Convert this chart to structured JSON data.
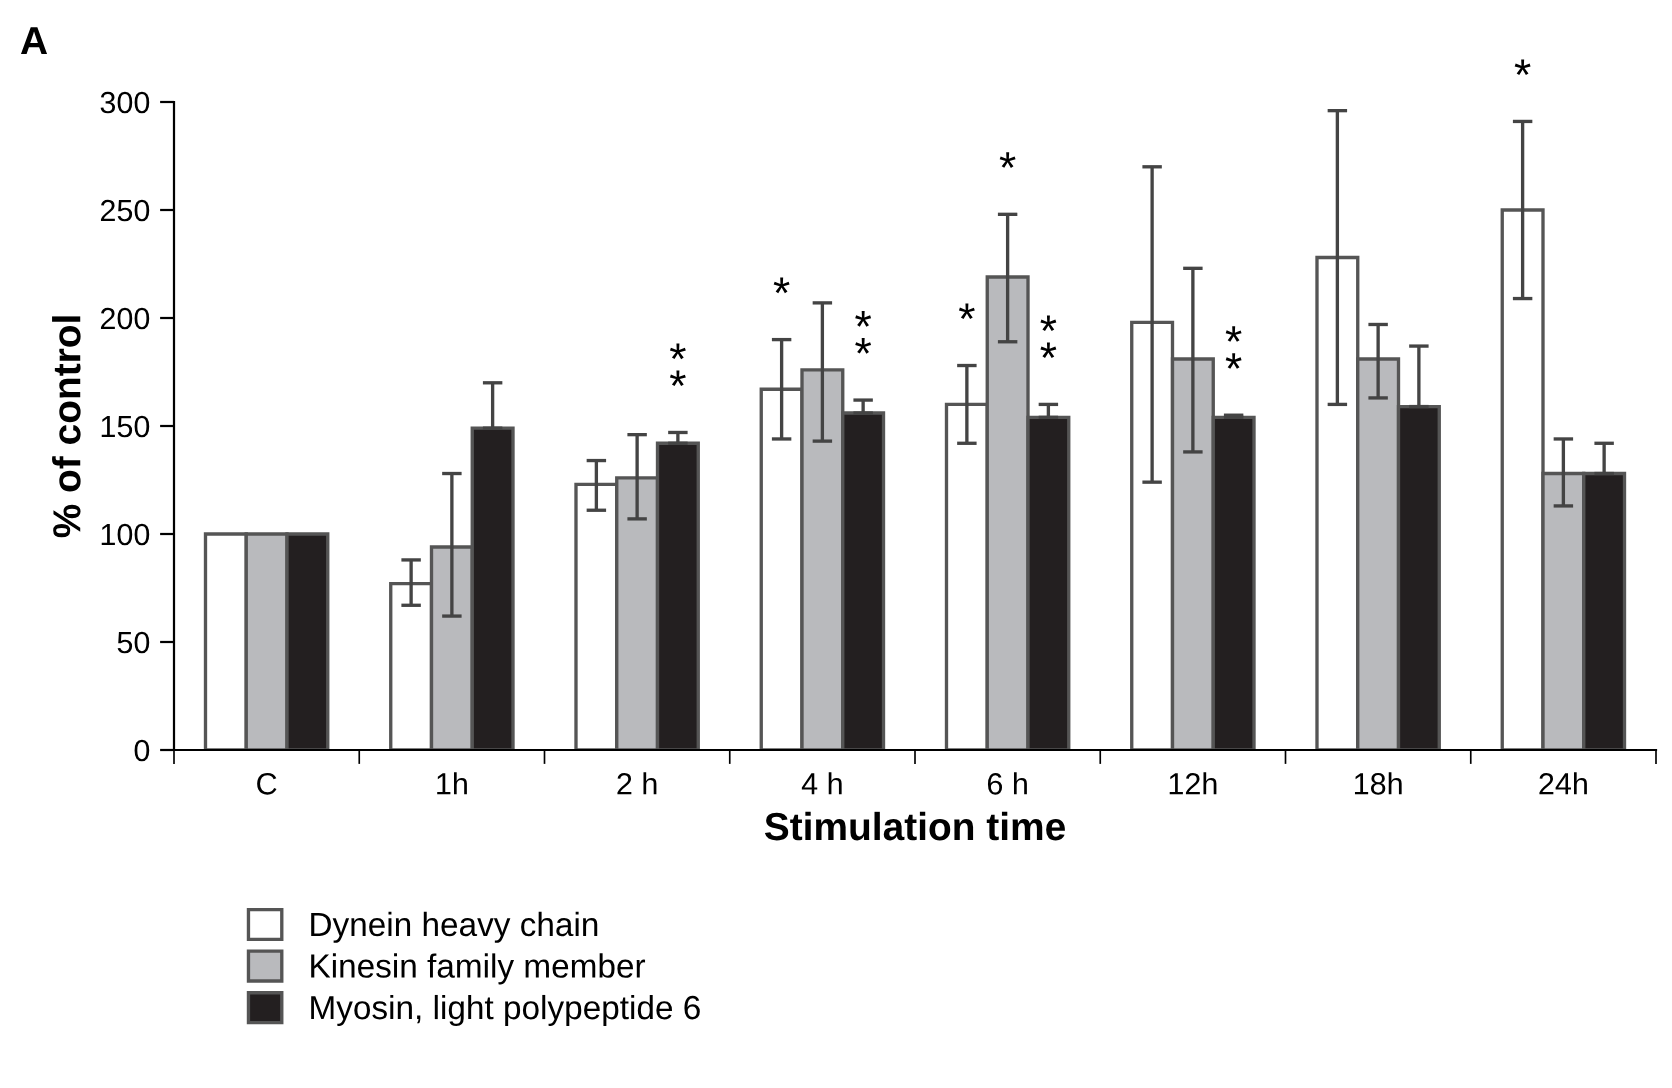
{
  "chart_data": {
    "type": "bar",
    "xlabel": "Stimulation time",
    "ylabel": "% of control",
    "categories": [
      "C",
      "1h",
      "2 h",
      "4 h",
      "6 h",
      "12h",
      "18h",
      "24h"
    ],
    "series": [
      {
        "name": "Dynein heavy chain",
        "color": "#ffffff",
        "values": [
          100,
          77,
          123,
          167,
          160,
          198,
          228,
          250
        ],
        "errors": [
          null,
          [
            67,
            88
          ],
          [
            111,
            134
          ],
          [
            144,
            190
          ],
          [
            142,
            178
          ],
          [
            124,
            270
          ],
          [
            160,
            296
          ],
          [
            209,
            291
          ]
        ],
        "value_labels": [
          null,
          null,
          null,
          "*",
          "*",
          null,
          null,
          "*"
        ]
      },
      {
        "name": "Kinesin family member",
        "color": "#b9babd",
        "values": [
          100,
          94,
          126,
          176,
          219,
          181,
          181,
          128
        ],
        "errors": [
          null,
          [
            62,
            128
          ],
          [
            107,
            146
          ],
          [
            143,
            207
          ],
          [
            189,
            248
          ],
          [
            138,
            223
          ],
          [
            163,
            197
          ],
          [
            113,
            144
          ]
        ],
        "value_labels": [
          null,
          null,
          null,
          null,
          "*",
          null,
          null,
          null
        ]
      },
      {
        "name": "Myosin, light polypeptide 6",
        "color": "#231f20",
        "values": [
          100,
          149,
          142,
          156,
          154,
          154,
          159,
          128
        ],
        "errors": [
          null,
          [
            149,
            170
          ],
          [
            142,
            147
          ],
          [
            156,
            162
          ],
          [
            154,
            160
          ],
          [
            154,
            155
          ],
          [
            159,
            187
          ],
          [
            128,
            142
          ]
        ],
        "value_labels": [
          null,
          null,
          "*\n*",
          "*\n*",
          "*\n*",
          "*\n*",
          null,
          null
        ]
      }
    ],
    "ylim": [
      0,
      300
    ],
    "yticks": [
      0,
      50,
      100,
      150,
      200,
      250,
      300
    ],
    "grid": false,
    "legend": "bottom left",
    "annotations": [
      "A"
    ]
  }
}
